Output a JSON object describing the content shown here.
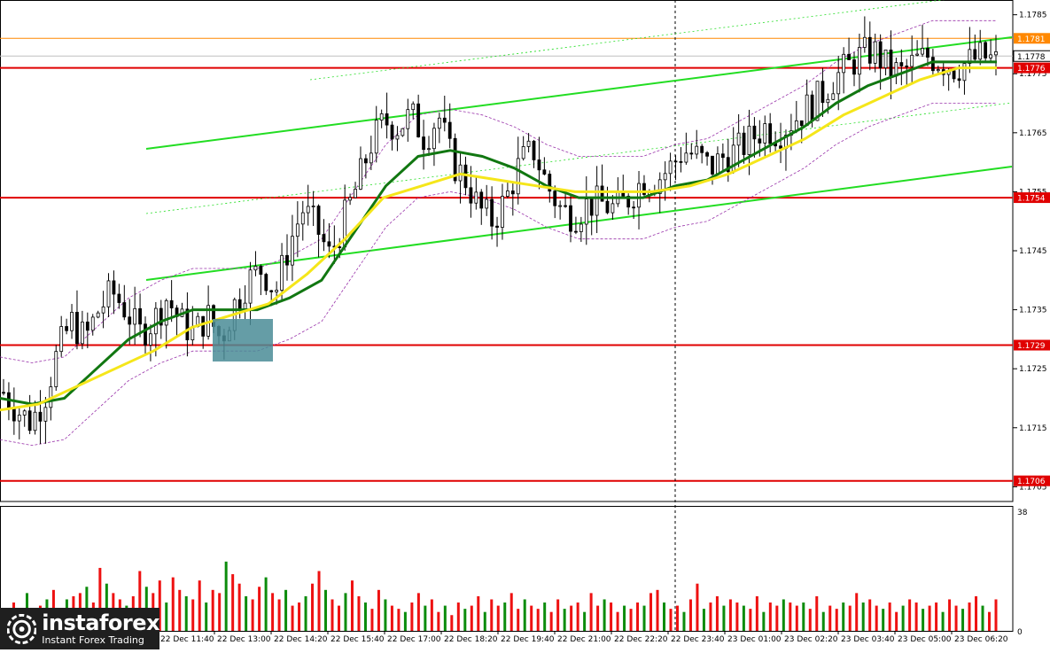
{
  "chart_data": {
    "type": "candlestick",
    "price_axis": {
      "ticks": [
        "1.1785",
        "1.1775",
        "1.1765",
        "1.1755",
        "1.1745",
        "1.1735",
        "1.1725",
        "1.1715",
        "1.1705"
      ],
      "ylim": [
        1.17025,
        1.17875
      ]
    },
    "time_axis": {
      "labels": [
        "22 Dec 11:40",
        "22 Dec 13:00",
        "22 Dec 14:20",
        "22 Dec 15:40",
        "22 Dec 17:00",
        "22 Dec 18:20",
        "22 Dec 19:40",
        "22 Dec 21:00",
        "22 Dec 22:20",
        "22 Dec 23:40",
        "23 Dec 01:00",
        "23 Dec 02:20",
        "23 Dec 03:40",
        "23 Dec 05:00",
        "23 Dec 06:20"
      ]
    },
    "levels": [
      {
        "value": 1.1781,
        "label": "1.1781",
        "color": "#ff8800"
      },
      {
        "value": 1.1778,
        "label": "1.1778",
        "color": "#ffffff"
      },
      {
        "value": 1.1776,
        "label": "1.1776",
        "color": "#e00000"
      },
      {
        "value": 1.1754,
        "label": "1.1754",
        "color": "#e00000"
      },
      {
        "value": 1.1729,
        "label": "1.1729",
        "color": "#e00000"
      },
      {
        "value": 1.1706,
        "label": "1.1706",
        "color": "#e00000"
      }
    ],
    "close_path": [
      1.1721,
      1.1718,
      1.1716,
      1.172,
      1.1728,
      1.1733,
      1.173,
      1.1735,
      1.1738,
      1.1735,
      1.1731,
      1.1733,
      1.1737,
      1.1733,
      1.1731,
      1.1734,
      1.173,
      1.1736,
      1.174,
      1.1742,
      1.1738,
      1.1746,
      1.1752,
      1.1749,
      1.1744,
      1.175,
      1.1756,
      1.1763,
      1.1767,
      1.1766,
      1.1768,
      1.1764,
      1.1768,
      1.176,
      1.1757,
      1.1752,
      1.175,
      1.1754,
      1.176,
      1.1762,
      1.1756,
      1.1752,
      1.1751,
      1.1753,
      1.1753,
      1.1752,
      1.1754,
      1.1757,
      1.1757,
      1.1759,
      1.1762,
      1.1761,
      1.1759,
      1.1761,
      1.1762,
      1.1764,
      1.1766,
      1.1765,
      1.1767,
      1.1769,
      1.1771,
      1.1774,
      1.1776,
      1.1778,
      1.1779,
      1.1776,
      1.1775,
      1.1777,
      1.1778,
      1.1777,
      1.1776,
      1.1777,
      1.1778,
      1.1777
    ],
    "indicators": [
      {
        "name": "fast MA",
        "color": "#117711",
        "values": [
          1.172,
          1.1719,
          1.172,
          1.1725,
          1.173,
          1.1733,
          1.1735,
          1.1735,
          1.1735,
          1.1737,
          1.174,
          1.1748,
          1.1756,
          1.1761,
          1.1762,
          1.1761,
          1.1759,
          1.1756,
          1.1754,
          1.1754,
          1.1754,
          1.1756,
          1.1757,
          1.176,
          1.1763,
          1.1766,
          1.177,
          1.1773,
          1.1775,
          1.1777,
          1.1777,
          1.1777
        ]
      },
      {
        "name": "slow MA",
        "color": "#f5e61a",
        "values": [
          1.1718,
          1.1719,
          1.1722,
          1.1725,
          1.1728,
          1.1732,
          1.1734,
          1.1736,
          1.1741,
          1.1747,
          1.1754,
          1.1756,
          1.1758,
          1.1757,
          1.1756,
          1.1755,
          1.1755,
          1.1755,
          1.1756,
          1.1758,
          1.1761,
          1.1764,
          1.1768,
          1.1771,
          1.1774,
          1.1776,
          1.1776
        ]
      }
    ],
    "volume_axis": {
      "ticks": [
        "38",
        "0"
      ],
      "ylim": [
        0,
        38
      ]
    },
    "volume": [
      5,
      9,
      6,
      12,
      7,
      8,
      10,
      13,
      6,
      10,
      11,
      12,
      14,
      9,
      20,
      15,
      12,
      10,
      8,
      11,
      19,
      14,
      12,
      16,
      9,
      17,
      13,
      11,
      10,
      16,
      9,
      13,
      12,
      22,
      18,
      15,
      11,
      10,
      14,
      17,
      12,
      10,
      13,
      8,
      9,
      11,
      15,
      19,
      13,
      10,
      8,
      12,
      16,
      11,
      9,
      7,
      13,
      10,
      8,
      7,
      6,
      9,
      12,
      8,
      10,
      6,
      8,
      5,
      9,
      7,
      8,
      11,
      6,
      10,
      8,
      9,
      12,
      7,
      10,
      8,
      7,
      9,
      6,
      10,
      7,
      8,
      9,
      6,
      12,
      8,
      10,
      9,
      6,
      8,
      7,
      9,
      8,
      12,
      13,
      9,
      7,
      8,
      6,
      10,
      15,
      7,
      9,
      11,
      8,
      10,
      9,
      8,
      7,
      11,
      6,
      9,
      8,
      10,
      9,
      8,
      9,
      7,
      11,
      6,
      8,
      7,
      9,
      8,
      12,
      9,
      10,
      8,
      7,
      9,
      6,
      8,
      10,
      9,
      7,
      8,
      9,
      6,
      10,
      8,
      7,
      9,
      11,
      8,
      6,
      10
    ]
  },
  "brand": {
    "name": "instaforex",
    "tagline": "Instant Forex Trading"
  }
}
